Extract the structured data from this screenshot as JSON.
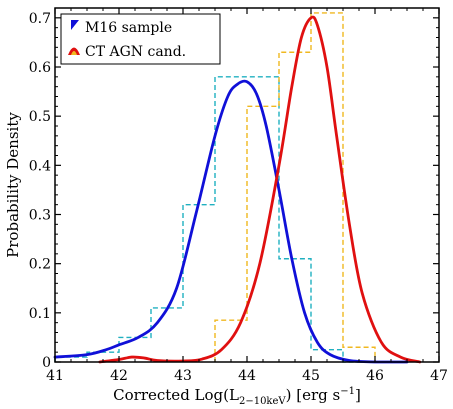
{
  "chart_data": {
    "type": "line",
    "xlabel_main": "Corrected Log(L",
    "xlabel_sub": "2−10keV",
    "xlabel_tail": ") [erg s",
    "xlabel_sup": "−1",
    "xlabel_end": "]",
    "ylabel": "Probability Density",
    "xlim": [
      41,
      47
    ],
    "ylim": [
      0,
      0.72
    ],
    "xticks": [
      "41",
      "42",
      "43",
      "44",
      "45",
      "46",
      "47"
    ],
    "yticks": [
      "0",
      "0.1",
      "0.2",
      "0.3",
      "0.4",
      "0.5",
      "0.6",
      "0.7"
    ],
    "legend_position": "top-left",
    "grid": false,
    "series": [
      {
        "name": "M16 sample",
        "kind": "curve",
        "color": "#1010d8",
        "x": [
          41.0,
          41.5,
          41.8,
          42.0,
          42.3,
          42.6,
          42.9,
          43.2,
          43.5,
          43.7,
          43.85,
          44.0,
          44.15,
          44.3,
          44.5,
          44.7,
          44.9,
          45.1,
          45.3,
          45.6,
          46.0,
          46.5
        ],
        "y": [
          0.01,
          0.015,
          0.025,
          0.035,
          0.05,
          0.08,
          0.15,
          0.3,
          0.46,
          0.54,
          0.565,
          0.57,
          0.545,
          0.48,
          0.35,
          0.21,
          0.1,
          0.04,
          0.015,
          0.003,
          0.0,
          0.0
        ]
      },
      {
        "name": "CT AGN cand.",
        "kind": "curve",
        "color": "#e01010",
        "x": [
          41.7,
          42.0,
          42.2,
          42.4,
          42.6,
          43.0,
          43.3,
          43.6,
          43.9,
          44.2,
          44.5,
          44.7,
          44.85,
          45.0,
          45.1,
          45.25,
          45.4,
          45.6,
          45.8,
          46.1,
          46.4,
          46.7
        ],
        "y": [
          0.0,
          0.005,
          0.01,
          0.008,
          0.003,
          0.002,
          0.006,
          0.025,
          0.08,
          0.2,
          0.4,
          0.56,
          0.66,
          0.7,
          0.685,
          0.6,
          0.46,
          0.28,
          0.14,
          0.04,
          0.01,
          0.0
        ]
      },
      {
        "name": "",
        "kind": "step",
        "color": "#20b0c0",
        "edges": [
          41.0,
          41.5,
          42.0,
          42.5,
          43.0,
          43.5,
          44.0,
          44.5,
          45.0,
          45.5,
          46.0
        ],
        "values": [
          0.01,
          0.02,
          0.05,
          0.11,
          0.32,
          0.58,
          0.58,
          0.21,
          0.025,
          0.0
        ]
      },
      {
        "name": "",
        "kind": "step",
        "color": "#f0b820",
        "edges": [
          43.5,
          44.0,
          44.5,
          45.0,
          45.5,
          46.0
        ],
        "values": [
          0.085,
          0.52,
          0.63,
          0.71,
          0.03
        ]
      }
    ]
  },
  "colors": {
    "legend_icon_1": "#1010d8",
    "legend_icon_2_outer": "#e01010",
    "legend_icon_2_inner": "#f0b820"
  }
}
